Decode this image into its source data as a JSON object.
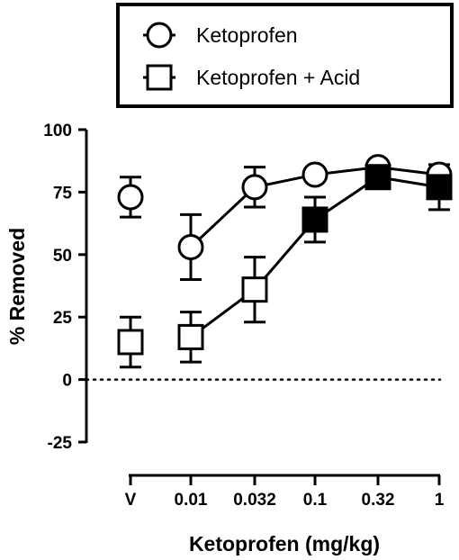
{
  "chart_data": {
    "type": "scatter",
    "x_categories": [
      "V",
      "0.01",
      "0.032",
      "0.1",
      "0.32",
      "1"
    ],
    "xlabel": "Ketoprofen (mg/kg)",
    "ylabel": "% Removed",
    "ylim": [
      -25,
      100
    ],
    "yticks": [
      "100",
      "75",
      "50",
      "25",
      "0",
      "-25"
    ],
    "reference_line": {
      "y": 0,
      "style": "dotted"
    },
    "legend": {
      "placement": "top",
      "entries": [
        {
          "label": "Ketoprofen",
          "marker": "circle-open"
        },
        {
          "label": "Ketoprofen + Acid",
          "marker": "square-open"
        }
      ]
    },
    "series": [
      {
        "name": "Ketoprofen",
        "marker": "circle",
        "points": [
          {
            "x": "V",
            "y": 73,
            "err": 8,
            "filled": false,
            "connected": false
          },
          {
            "x": "0.01",
            "y": 53,
            "err": 13,
            "filled": false,
            "connected": true
          },
          {
            "x": "0.032",
            "y": 77,
            "err": 8,
            "filled": false,
            "connected": true
          },
          {
            "x": "0.1",
            "y": 82,
            "err": 0,
            "filled": false,
            "connected": true
          },
          {
            "x": "0.32",
            "y": 85,
            "err": 0,
            "filled": false,
            "connected": true
          },
          {
            "x": "1",
            "y": 82,
            "err": 0,
            "filled": false,
            "connected": true
          }
        ]
      },
      {
        "name": "Ketoprofen + Acid",
        "marker": "square",
        "points": [
          {
            "x": "V",
            "y": 15,
            "err": 10,
            "filled": false,
            "connected": false
          },
          {
            "x": "0.01",
            "y": 17,
            "err": 10,
            "filled": false,
            "connected": true
          },
          {
            "x": "0.032",
            "y": 36,
            "err": 13,
            "filled": false,
            "connected": true
          },
          {
            "x": "0.1",
            "y": 64,
            "err": 9,
            "filled": true,
            "connected": true
          },
          {
            "x": "0.32",
            "y": 81,
            "err": 3,
            "filled": true,
            "connected": true
          },
          {
            "x": "1",
            "y": 77,
            "err": 9,
            "filled": true,
            "connected": true
          }
        ]
      }
    ]
  }
}
